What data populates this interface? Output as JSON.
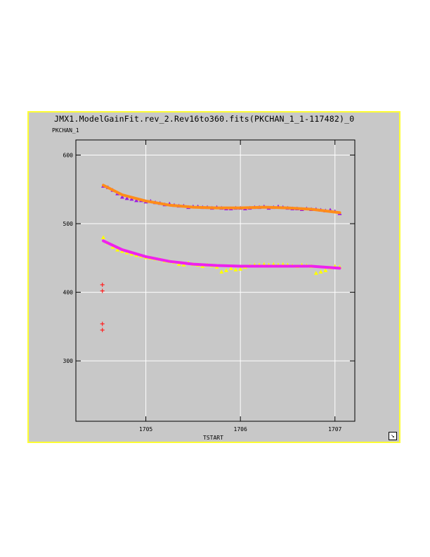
{
  "window": {
    "title": "JMX1.ModelGainFit.rev_2.Rev16to360.fits(PKCHAN_1_1-117482)_0",
    "frame_color": "#ffff33",
    "background": "#c8c8c8"
  },
  "icons": {
    "resize": "resize-arrow-icon"
  },
  "chart_data": {
    "type": "scatter",
    "title": "JMX1.ModelGainFit.rev_2.Rev16to360.fits(PKCHAN_1_1-117482)_0",
    "xlabel": "TSTART",
    "ylabel": "PKCHAN_1",
    "xlim": [
      1704.26,
      1707.21
    ],
    "ylim": [
      212,
      622
    ],
    "xticks": [
      1705,
      1706,
      1707
    ],
    "yticks": [
      300,
      400,
      500,
      600
    ],
    "grid": true,
    "series": [
      {
        "color": "#9b1be0",
        "marker": "triangle",
        "x": [
          1704.55,
          1704.6,
          1704.65,
          1704.7,
          1704.75,
          1704.8,
          1704.85,
          1704.9,
          1704.95,
          1705.0,
          1705.05,
          1705.1,
          1705.15,
          1705.2,
          1705.25,
          1705.3,
          1705.35,
          1705.4,
          1705.45,
          1705.5,
          1705.55,
          1705.6,
          1705.65,
          1705.7,
          1705.75,
          1705.8,
          1705.85,
          1705.9,
          1705.95,
          1706.0,
          1706.05,
          1706.1,
          1706.15,
          1706.2,
          1706.25,
          1706.3,
          1706.35,
          1706.4,
          1706.45,
          1706.5,
          1706.55,
          1706.6,
          1706.65,
          1706.7,
          1706.75,
          1706.8,
          1706.85,
          1706.9,
          1706.95,
          1707.0,
          1707.05
        ],
        "y": [
          555,
          553,
          549,
          544,
          539,
          537,
          536,
          534,
          534,
          532,
          533,
          531,
          530,
          528,
          529,
          527,
          526,
          526,
          524,
          525,
          525,
          524,
          524,
          523,
          524,
          523,
          522,
          522,
          523,
          523,
          522,
          523,
          524,
          524,
          525,
          523,
          524,
          525,
          524,
          523,
          522,
          522,
          521,
          522,
          521,
          521,
          520,
          519,
          520,
          518,
          515
        ]
      },
      {
        "color": "#ffff00",
        "marker": "triangle",
        "x": [
          1704.55,
          1704.6,
          1704.65,
          1704.7,
          1704.75,
          1704.8,
          1704.85,
          1704.9,
          1704.95,
          1705.0,
          1705.05,
          1705.1,
          1705.15,
          1705.2,
          1705.25,
          1705.3,
          1705.35,
          1705.4,
          1705.45,
          1705.5,
          1705.55,
          1705.6,
          1705.65,
          1705.7,
          1705.75,
          1705.8,
          1705.85,
          1705.9,
          1705.95,
          1706.0,
          1706.05,
          1706.1,
          1706.15,
          1706.2,
          1706.25,
          1706.3,
          1706.35,
          1706.4,
          1706.45,
          1706.5,
          1706.55,
          1706.6,
          1706.65,
          1706.7,
          1706.75,
          1706.8,
          1706.85,
          1706.9,
          1706.95,
          1707.0,
          1707.05
        ],
        "y": [
          480,
          472,
          466,
          462,
          460,
          458,
          456,
          454,
          453,
          451,
          450,
          449,
          448,
          446,
          445,
          444,
          441,
          440,
          443,
          441,
          440,
          438,
          440,
          439,
          437,
          430,
          432,
          435,
          433,
          434,
          437,
          439,
          440,
          440,
          441,
          440,
          441,
          440,
          441,
          440,
          439,
          438,
          440,
          439,
          438,
          428,
          430,
          432,
          436,
          438,
          437
        ]
      },
      {
        "color": "#ff2222",
        "marker": "plus",
        "x": [
          1704.54,
          1704.54,
          1704.54,
          1704.54
        ],
        "y": [
          411,
          402,
          354,
          345
        ]
      },
      {
        "color": "#ff8c1a",
        "marker": "line",
        "x": [
          1704.55,
          1704.75,
          1705.0,
          1705.25,
          1705.5,
          1705.75,
          1706.0,
          1706.25,
          1706.5,
          1706.75,
          1707.05
        ],
        "y": [
          556,
          542,
          533,
          527,
          524,
          523,
          523,
          524,
          523,
          521,
          516
        ]
      },
      {
        "color": "#ee22ee",
        "marker": "line",
        "x": [
          1704.55,
          1704.75,
          1705.0,
          1705.25,
          1705.5,
          1705.75,
          1706.0,
          1706.25,
          1706.5,
          1706.75,
          1707.05
        ],
        "y": [
          475,
          462,
          452,
          445,
          441,
          439,
          438,
          438,
          438,
          438,
          435
        ]
      }
    ]
  }
}
